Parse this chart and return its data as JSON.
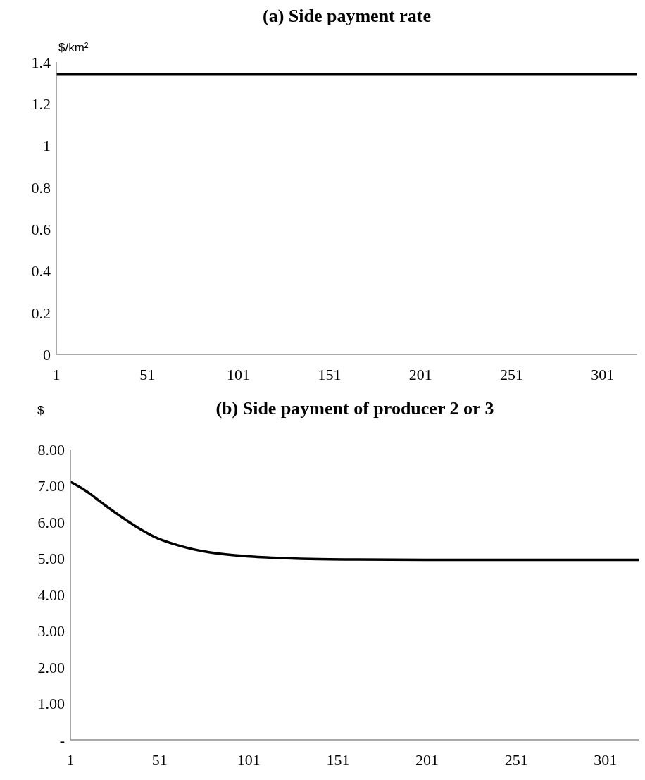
{
  "chart_data": [
    {
      "type": "line",
      "title": "(a) Side payment rate",
      "ylabel": "$/km²",
      "x": [
        1,
        320
      ],
      "xlim": [
        1,
        320
      ],
      "xticks": [
        1,
        51,
        101,
        151,
        201,
        251,
        301
      ],
      "ylim": [
        0,
        1.4
      ],
      "yticks": [
        0,
        0.2,
        0.4,
        0.6,
        0.8,
        1,
        1.2,
        1.4
      ],
      "series": [
        {
          "color": "#000000",
          "values": [
            1.34,
            1.34
          ]
        }
      ]
    },
    {
      "type": "line",
      "title": "(b) Side payment of producer 2 or 3",
      "ylabel": "$",
      "x": [
        1,
        10,
        20,
        30,
        40,
        50,
        60,
        70,
        80,
        90,
        100,
        120,
        140,
        160,
        200,
        320
      ],
      "xlim": [
        1,
        320
      ],
      "xticks": [
        1,
        51,
        101,
        151,
        201,
        251,
        301
      ],
      "ylim": [
        0,
        8
      ],
      "yticks": [
        {
          "value": 0,
          "label": "-"
        },
        {
          "value": 1,
          "label": "1.00"
        },
        {
          "value": 2,
          "label": "2.00"
        },
        {
          "value": 3,
          "label": "3.00"
        },
        {
          "value": 4,
          "label": "4.00"
        },
        {
          "value": 5,
          "label": "5.00"
        },
        {
          "value": 6,
          "label": "6.00"
        },
        {
          "value": 7,
          "label": "7.00"
        },
        {
          "value": 8,
          "label": "8.00"
        }
      ],
      "series": [
        {
          "color": "#000000",
          "values": [
            7.11,
            6.85,
            6.48,
            6.13,
            5.81,
            5.55,
            5.38,
            5.25,
            5.16,
            5.1,
            5.06,
            5.01,
            4.98,
            4.97,
            4.96,
            4.96
          ]
        }
      ]
    }
  ]
}
